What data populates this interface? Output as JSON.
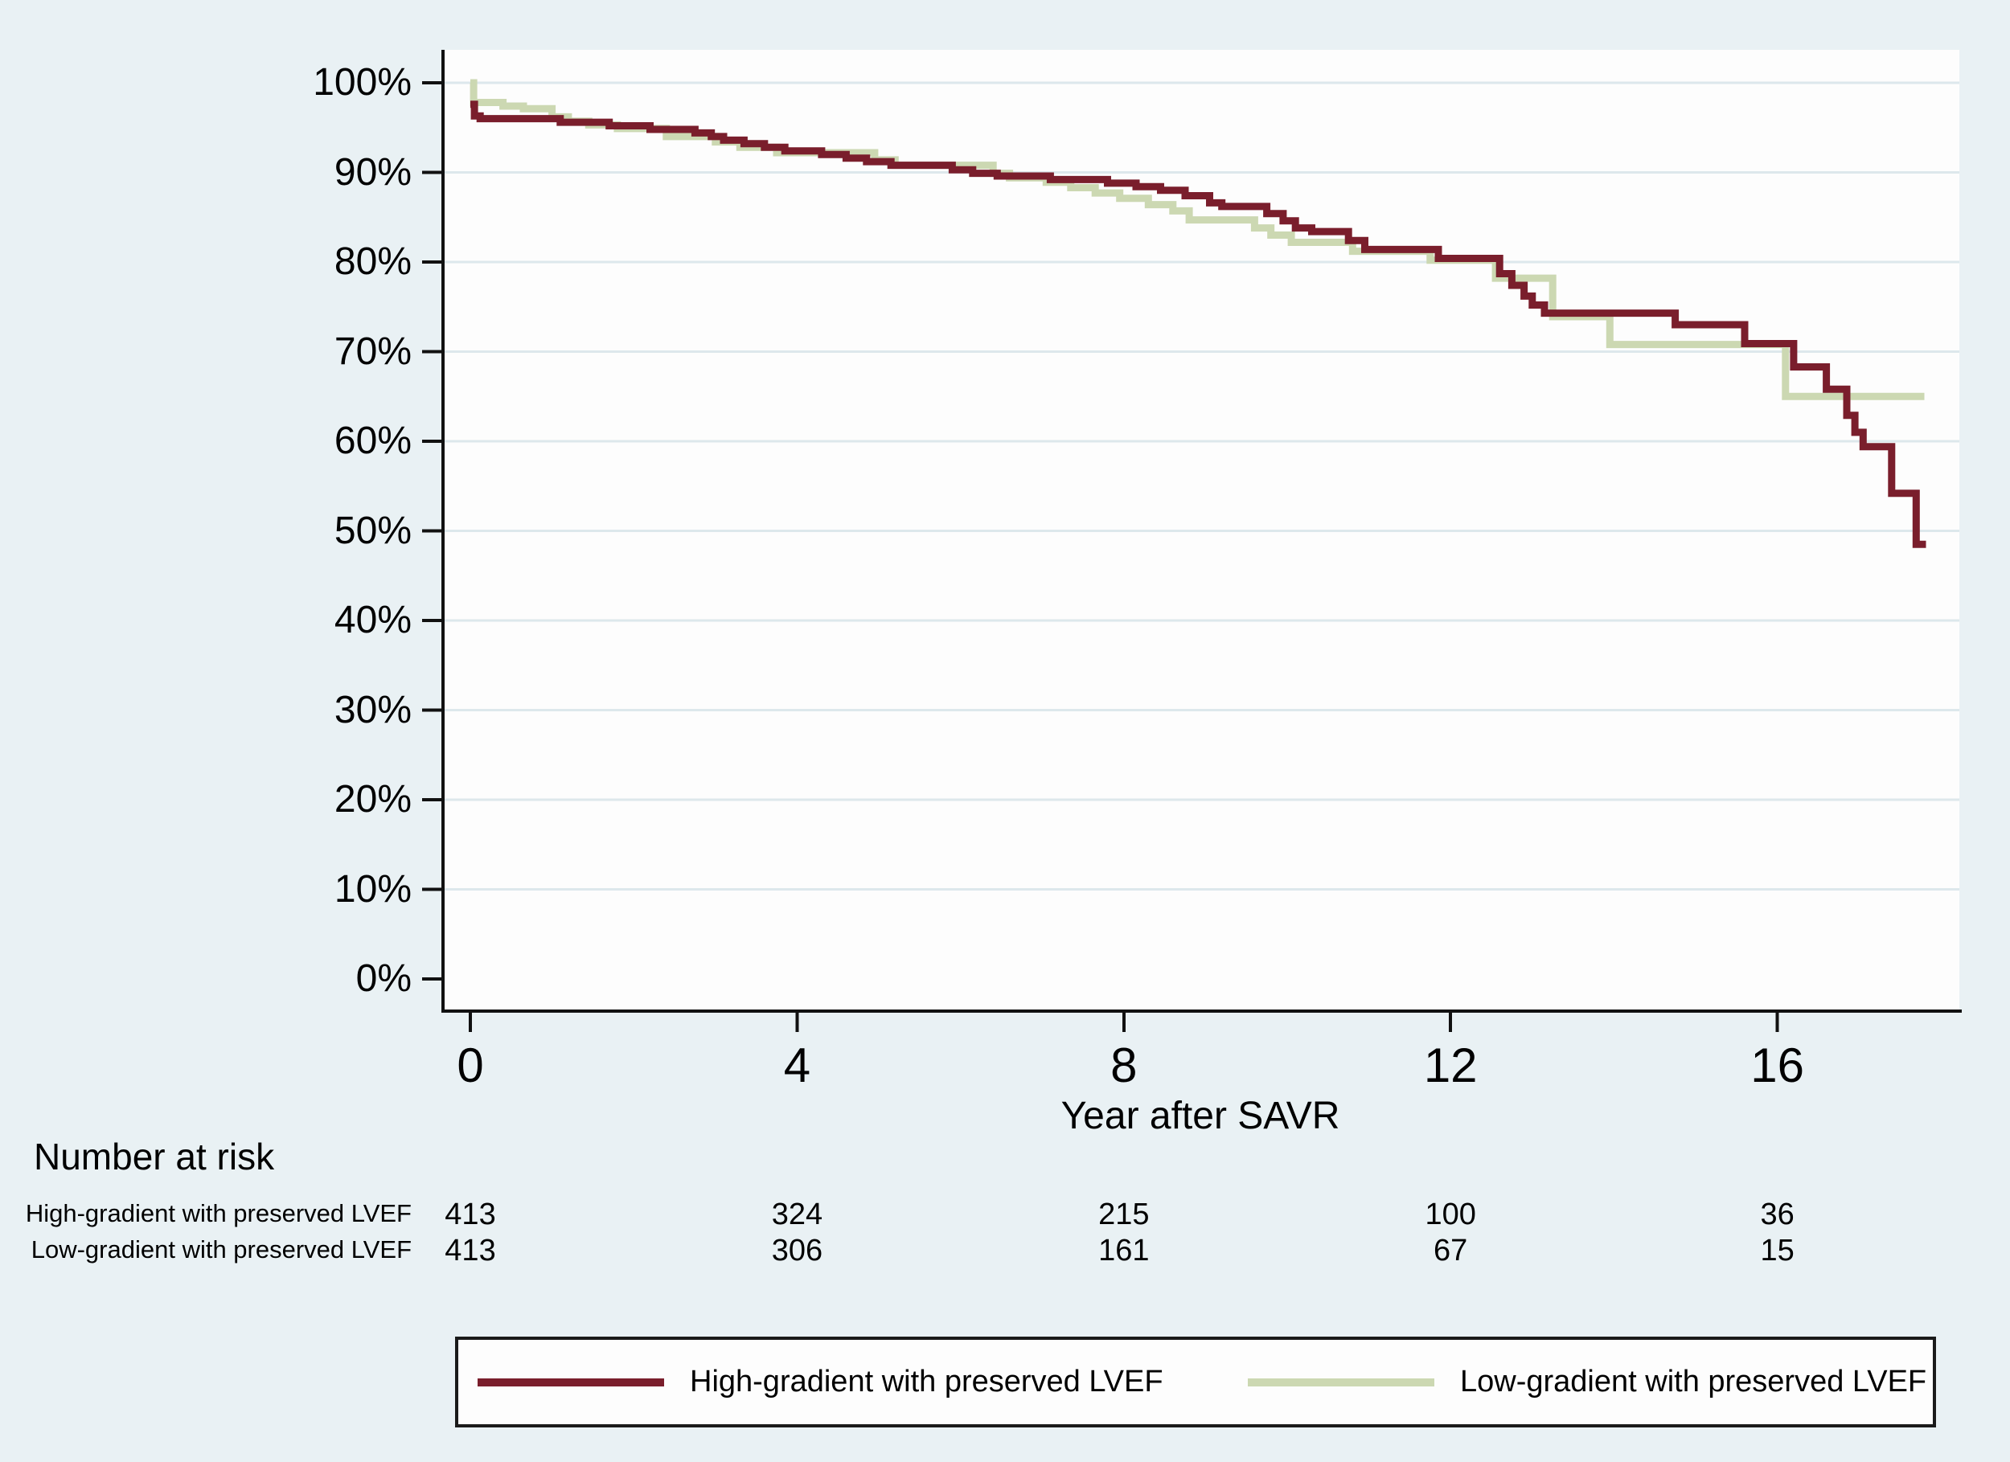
{
  "colors": {
    "background": "#e9f1f4",
    "plot_background": "#fdfdfd",
    "grid": "#dde8ec",
    "axis": "#111111",
    "text": "#000000",
    "series_high": "#7a1e2c",
    "series_low": "#ccd8b2"
  },
  "chart_data": {
    "type": "line",
    "subtype": "kaplan_meier_step",
    "title": "",
    "xlabel": "Year after SAVR",
    "ylabel": "",
    "x_ticks": [
      0,
      4,
      8,
      12,
      16
    ],
    "y_ticks_percent": [
      0,
      10,
      20,
      30,
      40,
      50,
      60,
      70,
      80,
      90,
      100
    ],
    "y_tick_suffix": "%",
    "xlim_years": [
      0,
      18.2
    ],
    "ylim_percent": [
      0,
      100
    ],
    "grid": "horizontal-only",
    "legend_position": "bottom",
    "series": [
      {
        "name": "High-gradient with preserved LVEF",
        "color": "#7a1e2c",
        "steps_year_percent": [
          [
            0,
            97.6
          ],
          [
            0.05,
            96.3
          ],
          [
            0.12,
            96.0
          ],
          [
            1.1,
            95.6
          ],
          [
            1.7,
            95.2
          ],
          [
            2.2,
            94.8
          ],
          [
            2.75,
            94.4
          ],
          [
            2.95,
            94.0
          ],
          [
            3.1,
            93.6
          ],
          [
            3.35,
            93.2
          ],
          [
            3.6,
            92.8
          ],
          [
            3.85,
            92.4
          ],
          [
            4.3,
            92.0
          ],
          [
            4.6,
            91.6
          ],
          [
            4.85,
            91.2
          ],
          [
            5.15,
            90.8
          ],
          [
            5.9,
            90.3
          ],
          [
            6.15,
            89.9
          ],
          [
            6.45,
            89.6
          ],
          [
            7.1,
            89.2
          ],
          [
            7.8,
            88.8
          ],
          [
            8.15,
            88.4
          ],
          [
            8.45,
            88.0
          ],
          [
            8.75,
            87.4
          ],
          [
            9.05,
            86.6
          ],
          [
            9.2,
            86.2
          ],
          [
            9.75,
            85.4
          ],
          [
            9.95,
            84.6
          ],
          [
            10.1,
            83.8
          ],
          [
            10.3,
            83.4
          ],
          [
            10.75,
            82.4
          ],
          [
            10.95,
            81.4
          ],
          [
            11.85,
            80.4
          ],
          [
            12.6,
            78.7
          ],
          [
            12.75,
            77.4
          ],
          [
            12.9,
            76.2
          ],
          [
            13.0,
            75.2
          ],
          [
            13.15,
            74.3
          ],
          [
            14.75,
            73.0
          ],
          [
            15.6,
            70.9
          ],
          [
            16.2,
            68.3
          ],
          [
            16.6,
            65.8
          ],
          [
            16.85,
            62.9
          ],
          [
            16.95,
            61.0
          ],
          [
            17.05,
            59.4
          ],
          [
            17.4,
            54.2
          ],
          [
            17.7,
            48.5
          ],
          [
            17.82,
            48.5
          ]
        ]
      },
      {
        "name": "Low-gradient with preserved LVEF",
        "color": "#ccd8b2",
        "steps_year_percent": [
          [
            0,
            100
          ],
          [
            0.04,
            97.8
          ],
          [
            0.4,
            97.4
          ],
          [
            0.65,
            97.1
          ],
          [
            1.0,
            96.2
          ],
          [
            1.2,
            95.7
          ],
          [
            1.45,
            95.3
          ],
          [
            1.8,
            94.9
          ],
          [
            2.4,
            94.0
          ],
          [
            3.0,
            93.4
          ],
          [
            3.3,
            92.8
          ],
          [
            3.75,
            92.2
          ],
          [
            4.95,
            91.4
          ],
          [
            5.2,
            90.8
          ],
          [
            6.4,
            89.9
          ],
          [
            6.6,
            89.4
          ],
          [
            7.05,
            88.9
          ],
          [
            7.35,
            88.3
          ],
          [
            7.65,
            87.7
          ],
          [
            7.95,
            87.1
          ],
          [
            8.3,
            86.4
          ],
          [
            8.6,
            85.7
          ],
          [
            8.8,
            84.7
          ],
          [
            9.6,
            83.8
          ],
          [
            9.8,
            83.0
          ],
          [
            10.05,
            82.2
          ],
          [
            10.8,
            81.2
          ],
          [
            11.75,
            80.2
          ],
          [
            12.55,
            78.2
          ],
          [
            13.25,
            73.9
          ],
          [
            13.95,
            70.8
          ],
          [
            16.1,
            65.0
          ],
          [
            17.8,
            65.0
          ]
        ]
      }
    ]
  },
  "risk_table": {
    "heading": "Number at risk",
    "time_points": [
      0,
      4,
      8,
      12,
      16
    ],
    "rows": [
      {
        "label": "High-gradient with preserved LVEF",
        "values": [
          "413",
          "324",
          "215",
          "100",
          "36"
        ]
      },
      {
        "label": "Low-gradient with preserved LVEF",
        "values": [
          "413",
          "306",
          "161",
          "67",
          "15"
        ]
      }
    ]
  },
  "legend": {
    "items": [
      {
        "label": "High-gradient with preserved LVEF",
        "color": "#7a1e2c"
      },
      {
        "label": "Low-gradient with preserved LVEF",
        "color": "#ccd8b2"
      }
    ]
  }
}
